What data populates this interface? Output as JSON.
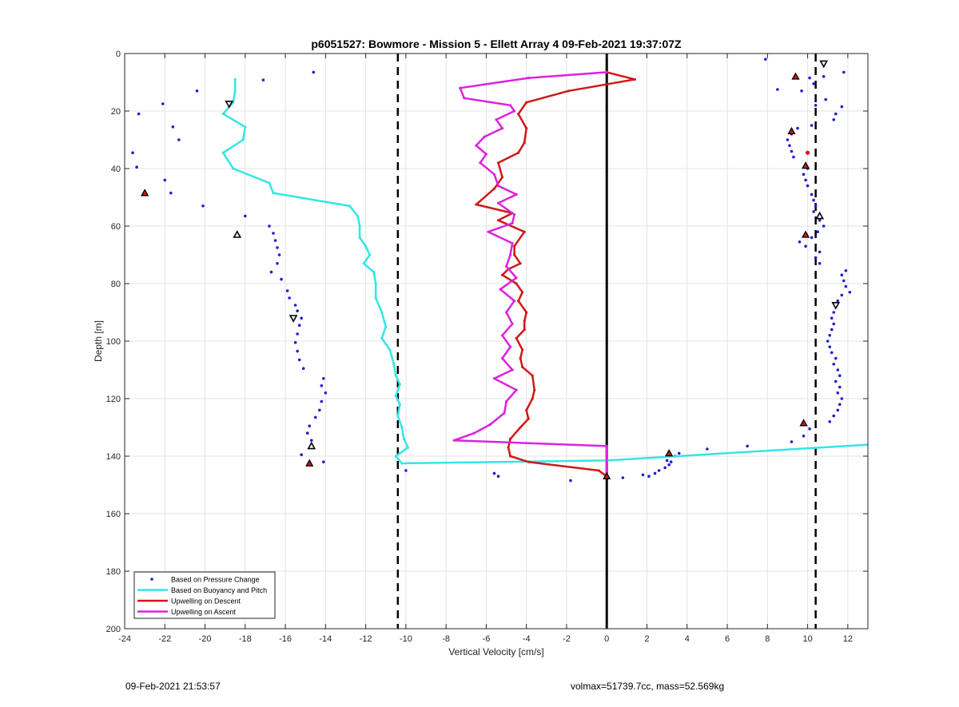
{
  "chart_data": {
    "type": "scatter",
    "title": "p6051527: Bowmore - Mission 5 - Ellett Array 4 09-Feb-2021 19:37:07Z",
    "xlabel": "Vertical Velocity [cm/s]",
    "ylabel": "Depth [m]",
    "xlim": [
      -24,
      13
    ],
    "ylim": [
      0,
      200
    ],
    "y_reversed": true,
    "grid": true,
    "legend_position": "bottom-left",
    "x_ticks": [
      -24,
      -22,
      -20,
      -18,
      -16,
      -14,
      -12,
      -10,
      -8,
      -6,
      -4,
      -2,
      0,
      2,
      4,
      6,
      8,
      10,
      12
    ],
    "y_ticks": [
      0,
      20,
      40,
      60,
      80,
      100,
      120,
      140,
      160,
      180,
      200
    ],
    "reference_lines": [
      {
        "x": -10.4,
        "style": "dashed",
        "color": "#000000"
      },
      {
        "x": 0,
        "style": "solid",
        "color": "#000000"
      },
      {
        "x": 10.4,
        "style": "dashed",
        "color": "#000000"
      }
    ],
    "series": [
      {
        "name": "Based on Pressure Change",
        "type": "scatter",
        "color": "#1f1fd0",
        "points": [
          [
            -14.6,
            6.5
          ],
          [
            -17.1,
            9.2
          ],
          [
            -20.4,
            13
          ],
          [
            -22.1,
            17.5
          ],
          [
            -23.3,
            21
          ],
          [
            -21.6,
            25.5
          ],
          [
            -21.3,
            30
          ],
          [
            -23.6,
            34.5
          ],
          [
            -23.4,
            39.5
          ],
          [
            -22,
            44
          ],
          [
            -21.7,
            48.5
          ],
          [
            -20.1,
            53
          ],
          [
            -18,
            56.5
          ],
          [
            -16.8,
            60
          ],
          [
            -16.6,
            62.5
          ],
          [
            -16.5,
            65
          ],
          [
            -16.4,
            67.5
          ],
          [
            -16.3,
            70
          ],
          [
            -16.4,
            73
          ],
          [
            -16.7,
            76
          ],
          [
            -16.2,
            78.5
          ],
          [
            -15.9,
            82.5
          ],
          [
            -15.8,
            85
          ],
          [
            -15.5,
            87.5
          ],
          [
            -15.4,
            89.5
          ],
          [
            -15.2,
            92
          ],
          [
            -15.3,
            94.5
          ],
          [
            -15.4,
            97.5
          ],
          [
            -15.5,
            100.5
          ],
          [
            -15.4,
            103.5
          ],
          [
            -15.3,
            106.5
          ],
          [
            -15.1,
            109.5
          ],
          [
            -14.1,
            113
          ],
          [
            -14.2,
            115.5
          ],
          [
            -14,
            118
          ],
          [
            -14.2,
            121
          ],
          [
            -14.3,
            124
          ],
          [
            -14.5,
            126.5
          ],
          [
            -14.8,
            129.5
          ],
          [
            -14.9,
            132
          ],
          [
            -14.7,
            134.5
          ],
          [
            -15.2,
            139.5
          ],
          [
            -14.1,
            142
          ],
          [
            -10,
            145
          ],
          [
            -5.6,
            146
          ],
          [
            -5.4,
            147
          ],
          [
            -1.8,
            148.5
          ],
          [
            0.8,
            147.5
          ],
          [
            1.8,
            146.5
          ],
          [
            2.1,
            147
          ],
          [
            2.4,
            146
          ],
          [
            2.6,
            145
          ],
          [
            2.9,
            144
          ],
          [
            3.1,
            143
          ],
          [
            3.2,
            142
          ],
          [
            3.0,
            141.5
          ],
          [
            3.4,
            140
          ],
          [
            3.6,
            139
          ],
          [
            5,
            137.5
          ],
          [
            7,
            136.5
          ],
          [
            9.2,
            135
          ],
          [
            9.8,
            133
          ],
          [
            10.1,
            130.5
          ],
          [
            11.1,
            128
          ],
          [
            11.3,
            126
          ],
          [
            11.5,
            124
          ],
          [
            11.6,
            122
          ],
          [
            11.7,
            120
          ],
          [
            11.5,
            118
          ],
          [
            11.6,
            116
          ],
          [
            11.4,
            114
          ],
          [
            11.6,
            112
          ],
          [
            11.5,
            110
          ],
          [
            11.3,
            108
          ],
          [
            11.4,
            106
          ],
          [
            11.2,
            104
          ],
          [
            11.1,
            102
          ],
          [
            11.0,
            100
          ],
          [
            11.1,
            98
          ],
          [
            11.2,
            96
          ],
          [
            11.3,
            94
          ],
          [
            11.2,
            92
          ],
          [
            11.3,
            90
          ],
          [
            11.5,
            86
          ],
          [
            11.7,
            84
          ],
          [
            12.1,
            83
          ],
          [
            11.9,
            81
          ],
          [
            11.8,
            79
          ],
          [
            11.7,
            77
          ],
          [
            11.9,
            75.5
          ],
          [
            10.6,
            73
          ],
          [
            10.4,
            71
          ],
          [
            10.6,
            69
          ],
          [
            9.9,
            67
          ],
          [
            9.6,
            65.5
          ],
          [
            10.2,
            64
          ],
          [
            10.5,
            62
          ],
          [
            10.8,
            60
          ],
          [
            10.6,
            58
          ],
          [
            10.3,
            55
          ],
          [
            10.4,
            53
          ],
          [
            10.3,
            51
          ],
          [
            10.2,
            49
          ],
          [
            10.0,
            46
          ],
          [
            9.9,
            44
          ],
          [
            9.8,
            42
          ],
          [
            10.0,
            40
          ],
          [
            9.3,
            36
          ],
          [
            9.2,
            34
          ],
          [
            9.1,
            32
          ],
          [
            9.0,
            30
          ],
          [
            9.2,
            28
          ],
          [
            9.5,
            26
          ],
          [
            10.2,
            25
          ],
          [
            11.3,
            23
          ],
          [
            11.7,
            18.5
          ],
          [
            11.4,
            21
          ],
          [
            10.4,
            18
          ],
          [
            10.9,
            16
          ],
          [
            8.5,
            12.5
          ],
          [
            9.7,
            13
          ],
          [
            10.3,
            10.5
          ],
          [
            10.1,
            8.5
          ],
          [
            10.8,
            8
          ],
          [
            11.8,
            6.5
          ],
          [
            10.8,
            4
          ],
          [
            7.9,
            2
          ]
        ]
      },
      {
        "name": "Based on Buoyancy and Pitch",
        "type": "line",
        "color": "#33e6e6",
        "points": [
          [
            -18.5,
            9
          ],
          [
            -18.5,
            13
          ],
          [
            -18.6,
            17
          ],
          [
            -19.1,
            21
          ],
          [
            -18,
            25.5
          ],
          [
            -18.1,
            30
          ],
          [
            -19.1,
            34.5
          ],
          [
            -18.6,
            40
          ],
          [
            -16.8,
            45
          ],
          [
            -16.6,
            48.5
          ],
          [
            -12.8,
            53
          ],
          [
            -12.4,
            56.5
          ],
          [
            -12.3,
            60
          ],
          [
            -12.3,
            64
          ],
          [
            -12,
            67
          ],
          [
            -11.8,
            70
          ],
          [
            -12.1,
            73
          ],
          [
            -11.6,
            76
          ],
          [
            -11.5,
            80
          ],
          [
            -11.5,
            85
          ],
          [
            -11.2,
            90
          ],
          [
            -11.0,
            95
          ],
          [
            -11.2,
            99
          ],
          [
            -10.8,
            103
          ],
          [
            -10.6,
            108
          ],
          [
            -10.5,
            112
          ],
          [
            -10.3,
            115
          ],
          [
            -10.5,
            119
          ],
          [
            -10.3,
            122
          ],
          [
            -10.4,
            126
          ],
          [
            -10.2,
            130
          ],
          [
            -10.1,
            134
          ],
          [
            -9.9,
            137
          ],
          [
            -10.5,
            140
          ],
          [
            -10.2,
            142.5
          ],
          [
            0,
            141.5
          ],
          [
            13,
            136
          ]
        ]
      },
      {
        "name": "Upwelling on Descent",
        "type": "line",
        "color": "#d01818",
        "points": [
          [
            0,
            6.5
          ],
          [
            1.4,
            9
          ],
          [
            -1.9,
            13
          ],
          [
            -4,
            17
          ],
          [
            -4.4,
            21
          ],
          [
            -4.0,
            26
          ],
          [
            -4.1,
            31
          ],
          [
            -4.4,
            34.5
          ],
          [
            -5.4,
            38
          ],
          [
            -5.2,
            43
          ],
          [
            -5.6,
            47
          ],
          [
            -6.5,
            52.5
          ],
          [
            -4.7,
            55.5
          ],
          [
            -5.4,
            58
          ],
          [
            -4.1,
            62
          ],
          [
            -4.6,
            67
          ],
          [
            -4.6,
            70
          ],
          [
            -4.3,
            73
          ],
          [
            -4.9,
            75
          ],
          [
            -5.2,
            77
          ],
          [
            -4.5,
            80
          ],
          [
            -4.2,
            83
          ],
          [
            -4.4,
            86
          ],
          [
            -4.0,
            90
          ],
          [
            -4.1,
            93
          ],
          [
            -4.1,
            96
          ],
          [
            -4.5,
            99
          ],
          [
            -4.2,
            103
          ],
          [
            -4.3,
            106
          ],
          [
            -4.2,
            109
          ],
          [
            -3.7,
            112
          ],
          [
            -3.6,
            117
          ],
          [
            -3.7,
            120
          ],
          [
            -4.0,
            124
          ],
          [
            -3.9,
            127
          ],
          [
            -4.3,
            130
          ],
          [
            -4.8,
            134
          ],
          [
            -4.9,
            137
          ],
          [
            -4.8,
            140
          ],
          [
            -3.9,
            142
          ],
          [
            -0.4,
            145
          ],
          [
            0,
            147
          ]
        ]
      },
      {
        "name": "Upwelling on Ascent",
        "type": "line",
        "color": "#dd22dd",
        "points": [
          [
            0,
            6.5
          ],
          [
            -3.9,
            8.5
          ],
          [
            -7.3,
            12
          ],
          [
            -7.1,
            15.5
          ],
          [
            -4.8,
            18
          ],
          [
            -4.6,
            20
          ],
          [
            -5.5,
            23
          ],
          [
            -5.2,
            26
          ],
          [
            -6.1,
            29
          ],
          [
            -6.5,
            32
          ],
          [
            -6,
            35
          ],
          [
            -6.3,
            38
          ],
          [
            -5.6,
            42
          ],
          [
            -5.4,
            46
          ],
          [
            -4.5,
            49
          ],
          [
            -5.4,
            52
          ],
          [
            -4.6,
            56
          ],
          [
            -4.7,
            59
          ],
          [
            -5.9,
            62
          ],
          [
            -4.7,
            66
          ],
          [
            -4.8,
            70
          ],
          [
            -5.0,
            74
          ],
          [
            -4.5,
            78
          ],
          [
            -5.3,
            82
          ],
          [
            -4.6,
            86
          ],
          [
            -5.0,
            90
          ],
          [
            -4.7,
            94
          ],
          [
            -5.2,
            98
          ],
          [
            -4.8,
            102
          ],
          [
            -5.2,
            106
          ],
          [
            -4.7,
            110
          ],
          [
            -5.6,
            113
          ],
          [
            -4.5,
            117
          ],
          [
            -5.0,
            121
          ],
          [
            -5.1,
            125
          ],
          [
            -5.8,
            129
          ],
          [
            -6.6,
            132
          ],
          [
            -7.6,
            134.5
          ],
          [
            0,
            136.5
          ],
          [
            0,
            147
          ]
        ]
      },
      {
        "name": "Upward markers",
        "type": "markers",
        "marker": "triangle-up",
        "fill": "#d01818",
        "points": [
          [
            9.4,
            8
          ],
          [
            9.2,
            27
          ],
          [
            9.9,
            39
          ],
          [
            9.9,
            63
          ],
          [
            9.8,
            128.5
          ],
          [
            -14.8,
            142.5
          ],
          [
            3.1,
            139
          ],
          [
            0,
            147
          ],
          [
            -23,
            48.5
          ]
        ]
      },
      {
        "name": "Direction markers",
        "type": "markers",
        "marker": "triangle-hollow",
        "points": [
          [
            -18.8,
            17.5
          ],
          [
            -18.4,
            63
          ],
          [
            -15.6,
            92
          ],
          [
            -14.7,
            136.5
          ],
          [
            10.8,
            3.5
          ],
          [
            10.6,
            56.5
          ],
          [
            11.4,
            87.5
          ]
        ]
      },
      {
        "name": "Single point",
        "type": "markers",
        "marker": "dot",
        "fill": "#e01010",
        "points": [
          [
            10.0,
            34.5
          ]
        ]
      }
    ],
    "legend": [
      {
        "label": "Based on Pressure Change",
        "style": "dot",
        "color": "#1f1fd0"
      },
      {
        "label": "Based on Buoyancy and Pitch",
        "style": "line",
        "color": "#33e6e6"
      },
      {
        "label": "Upwelling on Descent",
        "style": "line",
        "color": "#d01818"
      },
      {
        "label": "Upwelling on Ascent",
        "style": "line",
        "color": "#dd22dd"
      }
    ]
  },
  "footer": {
    "left": "09-Feb-2021 21:53:57",
    "right": "volmax=51739.7cc, mass=52.569kg"
  }
}
